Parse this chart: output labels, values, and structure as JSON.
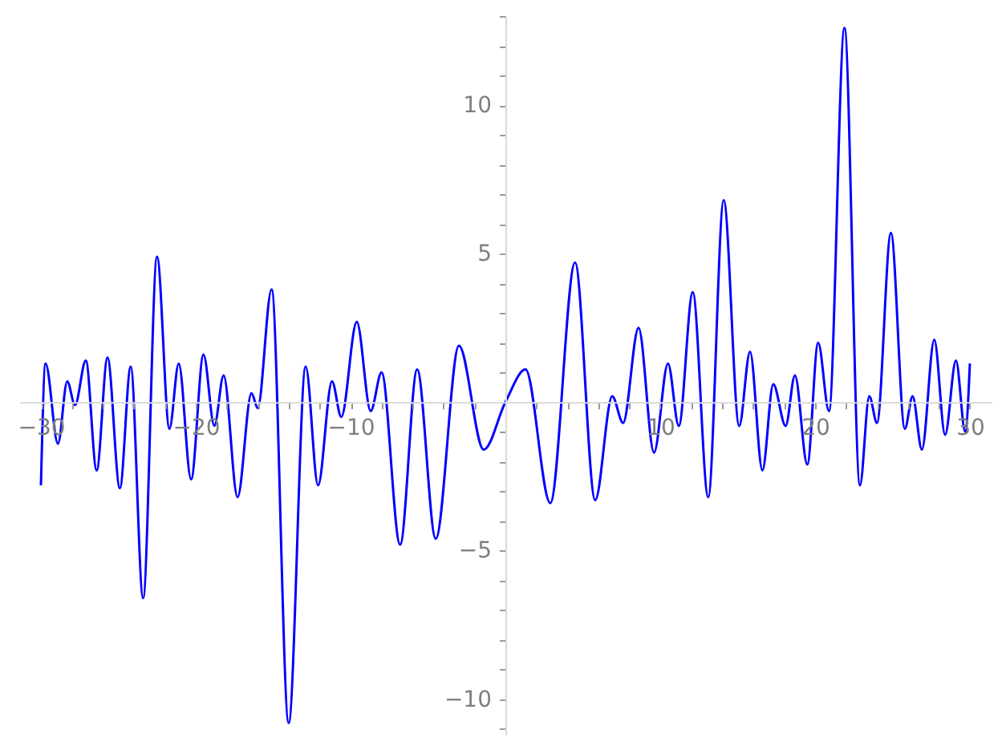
{
  "chart_data": {
    "type": "line",
    "x": [
      -30.0,
      -29.7,
      -28.9,
      -28.3,
      -27.8,
      -27.1,
      -26.4,
      -25.7,
      -24.9,
      -24.2,
      -23.4,
      -22.5,
      -21.7,
      -21.1,
      -20.3,
      -19.5,
      -18.8,
      -18.2,
      -17.3,
      -16.4,
      -16.0,
      -15.1,
      -14.0,
      -12.9,
      -12.1,
      -11.2,
      -10.6,
      -9.6,
      -8.7,
      -8.0,
      -6.8,
      -5.7,
      -4.5,
      -3.0,
      -1.4,
      0.0,
      1.3,
      2.9,
      4.5,
      5.8,
      6.9,
      7.6,
      8.6,
      9.6,
      10.5,
      11.2,
      12.1,
      13.1,
      14.1,
      15.1,
      15.8,
      16.6,
      17.3,
      18.1,
      18.7,
      19.5,
      20.2,
      20.9,
      21.9,
      22.9,
      23.5,
      24.0,
      24.9,
      25.8,
      26.3,
      26.9,
      27.7,
      28.4,
      29.1,
      29.7,
      30.0
    ],
    "series": [
      {
        "color": "#0000ff",
        "values": [
          -2.8,
          1.3,
          -1.4,
          0.7,
          -0.1,
          1.4,
          -2.3,
          1.5,
          -2.9,
          1.2,
          -6.6,
          4.9,
          -0.9,
          1.3,
          -2.6,
          1.6,
          -0.8,
          0.9,
          -3.2,
          0.3,
          -0.2,
          3.8,
          -10.8,
          1.2,
          -2.8,
          0.7,
          -0.5,
          2.7,
          -0.3,
          1.0,
          -4.8,
          1.1,
          -4.6,
          1.9,
          -1.6,
          0.0,
          1.1,
          -3.4,
          4.7,
          -3.3,
          0.2,
          -0.7,
          2.5,
          -1.7,
          1.3,
          -0.8,
          3.7,
          -3.2,
          6.8,
          -0.8,
          1.7,
          -2.3,
          0.6,
          -0.8,
          0.9,
          -2.1,
          2.0,
          -0.3,
          12.6,
          -2.8,
          0.2,
          -0.7,
          5.7,
          -0.9,
          0.2,
          -1.6,
          2.1,
          -1.1,
          1.4,
          -1.0,
          1.3
        ]
      }
    ],
    "xlim": [
      -31.4,
      31.4
    ],
    "ylim": [
      -11.2,
      13.0
    ],
    "xticks": [
      {
        "value": -30,
        "label": "−30"
      },
      {
        "value": -28,
        "label": null
      },
      {
        "value": -26,
        "label": null
      },
      {
        "value": -24,
        "label": null
      },
      {
        "value": -22,
        "label": null
      },
      {
        "value": -20,
        "label": "−20"
      },
      {
        "value": -18,
        "label": null
      },
      {
        "value": -16,
        "label": null
      },
      {
        "value": -14,
        "label": null
      },
      {
        "value": -12,
        "label": null
      },
      {
        "value": -10,
        "label": "−10"
      },
      {
        "value": -8,
        "label": null
      },
      {
        "value": -6,
        "label": null
      },
      {
        "value": -4,
        "label": null
      },
      {
        "value": -2,
        "label": null
      },
      {
        "value": 2,
        "label": null
      },
      {
        "value": 4,
        "label": null
      },
      {
        "value": 6,
        "label": null
      },
      {
        "value": 8,
        "label": null
      },
      10,
      {
        "value": 12,
        "label": null
      },
      {
        "value": 14,
        "label": null
      },
      {
        "value": 16,
        "label": null
      },
      {
        "value": 18,
        "label": null
      },
      20,
      {
        "value": 22,
        "label": null
      },
      {
        "value": 24,
        "label": null
      },
      {
        "value": 26,
        "label": null
      },
      {
        "value": 28,
        "label": null
      },
      30
    ],
    "yticks": [
      {
        "value": -11,
        "label": null
      },
      {
        "value": -10,
        "label": "−10"
      },
      {
        "value": -9,
        "label": null
      },
      {
        "value": -8,
        "label": null
      },
      {
        "value": -7,
        "label": null
      },
      {
        "value": -6,
        "label": null
      },
      {
        "value": -5,
        "label": "−5"
      },
      {
        "value": -4,
        "label": null
      },
      {
        "value": -3,
        "label": null
      },
      {
        "value": -2,
        "label": null
      },
      {
        "value": -1,
        "label": null
      },
      {
        "value": 1,
        "label": null
      },
      {
        "value": 2,
        "label": null
      },
      {
        "value": 3,
        "label": null
      },
      {
        "value": 4,
        "label": null
      },
      5,
      {
        "value": 6,
        "label": null
      },
      {
        "value": 7,
        "label": null
      },
      {
        "value": 8,
        "label": null
      },
      {
        "value": 9,
        "label": null
      },
      10,
      {
        "value": 11,
        "label": null
      },
      {
        "value": 12,
        "label": null
      },
      {
        "value": 13,
        "label": null
      }
    ],
    "grid": false,
    "legend": false,
    "marker": "none",
    "line_style": "solid"
  }
}
